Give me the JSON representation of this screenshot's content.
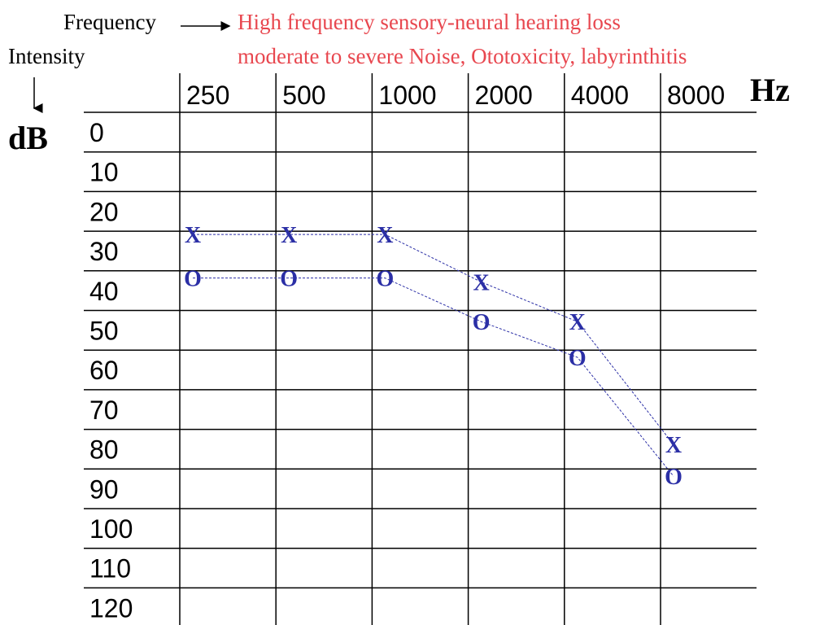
{
  "header": {
    "frequency_label": "Frequency",
    "intensity_label": "Intensity",
    "title_line1": "High frequency sensory-neural hearing loss",
    "title_line2": "moderate to severe Noise, Ototoxicity, labyrinthitis",
    "title_color": "#e8474f",
    "x_unit": "Hz",
    "y_unit": "dB"
  },
  "chart_data": {
    "type": "line",
    "x_categories": [
      "250",
      "500",
      "1000",
      "2000",
      "4000",
      "8000"
    ],
    "y_ticks": [
      "0",
      "10",
      "20",
      "30",
      "40",
      "50",
      "60",
      "70",
      "80",
      "90",
      "100",
      "110",
      "120"
    ],
    "ylim": [
      0,
      120
    ],
    "y_inverted": true,
    "grid": true,
    "series": [
      {
        "marker": "X",
        "color": "#2b2fa6",
        "line_style": "dashed",
        "values": [
          30,
          30,
          30,
          42,
          52,
          83
        ]
      },
      {
        "marker": "O",
        "color": "#2b2fa6",
        "line_style": "dashed",
        "values": [
          41,
          41,
          41,
          52,
          61,
          91
        ]
      }
    ]
  }
}
